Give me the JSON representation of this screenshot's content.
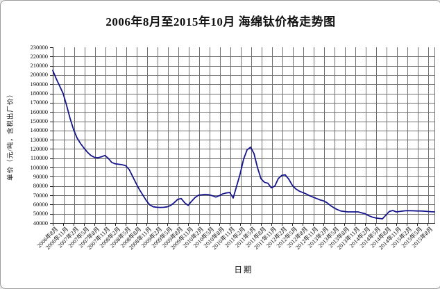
{
  "chart": {
    "title": "2006年8月至2015年10月 海绵钛价格走势图",
    "xlabel": "日期",
    "ylabel": "单价（元/吨，含税出厂价）"
  },
  "chart_data": {
    "type": "line",
    "title": "2006年8月至2015年10月 海绵钛价格走势图",
    "xlabel": "日期",
    "ylabel": "单价（元/吨，含税出厂价）",
    "x_start": "2006年8月",
    "x_end": "2015年10月",
    "x_interval": "monthly",
    "x_tick_every_n_months": 3,
    "ylim": [
      40000,
      230000
    ],
    "ytick_step": 10000,
    "grid": true,
    "legend": "none",
    "y_tick_labels": [
      "230000",
      "220000",
      "210000",
      "200000",
      "190000",
      "180000",
      "170000",
      "160000",
      "150000",
      "140000",
      "130000",
      "120000",
      "110000",
      "100000",
      "90000",
      "80000",
      "70000",
      "60000",
      "50000",
      "40000"
    ],
    "x_tick_labels": [
      "2006年8月",
      "2006年11月",
      "2007年2月",
      "2007年5月",
      "2007年8月",
      "2007年11月",
      "2008年2月",
      "2008年5月",
      "2008年8月",
      "2008年11月",
      "2009年2月",
      "2009年5月",
      "2009年8月",
      "2009年11月",
      "2010年2月",
      "2010年5月",
      "2010年8月",
      "2010年11月",
      "2011年2月",
      "2011年5月",
      "2011年8月",
      "2011年11月",
      "2012年2月",
      "2012年5月",
      "2012年8月",
      "2012年11月",
      "2013年2月",
      "2013年5月",
      "2013年8月",
      "2013年11月",
      "2014年2月",
      "2014年5月",
      "2014年8月",
      "2014年11月",
      "2015年2月",
      "2015年5月",
      "2015年8月"
    ],
    "series": [
      {
        "name": "海绵钛价格",
        "color": "#14148c",
        "monthly_values": [
          205000,
          196000,
          188000,
          180000,
          167000,
          153000,
          141000,
          132000,
          126000,
          121000,
          116500,
          113000,
          111000,
          110500,
          111500,
          113000,
          110000,
          105500,
          104000,
          103500,
          103000,
          102000,
          98000,
          90500,
          83000,
          76000,
          70000,
          64000,
          59500,
          57500,
          57000,
          56800,
          57000,
          57500,
          59000,
          62000,
          65500,
          66500,
          62000,
          59000,
          63500,
          67500,
          70000,
          70500,
          71000,
          70500,
          69500,
          68000,
          69500,
          71500,
          72500,
          73000,
          67000,
          80000,
          93000,
          109000,
          119000,
          122000,
          115000,
          100000,
          88000,
          84000,
          83000,
          78000,
          80000,
          88000,
          91500,
          92000,
          87500,
          81000,
          77000,
          74500,
          73000,
          71500,
          69500,
          68000,
          66500,
          65000,
          64000,
          62000,
          59000,
          56500,
          54500,
          53000,
          52500,
          52000,
          52000,
          52000,
          52000,
          51000,
          50000,
          48000,
          46500,
          45500,
          45000,
          44500,
          48500,
          52500,
          53500,
          52000,
          52500,
          53000,
          53300,
          53300,
          53200,
          53000,
          53000,
          52800,
          52500,
          52200,
          52000
        ]
      }
    ]
  }
}
